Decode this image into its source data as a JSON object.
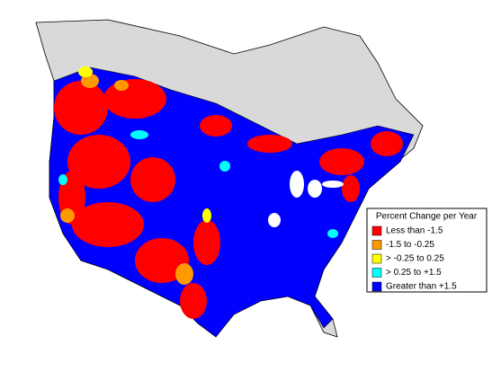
{
  "legend": {
    "title": "Percent Change per Year",
    "items": [
      {
        "label": "Less than -1.5",
        "color": "#ff0000"
      },
      {
        "label": "-1.5 to -0.25",
        "color": "#ff9900"
      },
      {
        "label": "> -0.25 to 0.25",
        "color": "#ffff00"
      },
      {
        "label": "> 0.25 to +1.5",
        "color": "#00ffff"
      },
      {
        "label": "Greater than +1.5",
        "color": "#0000ff"
      }
    ]
  }
}
